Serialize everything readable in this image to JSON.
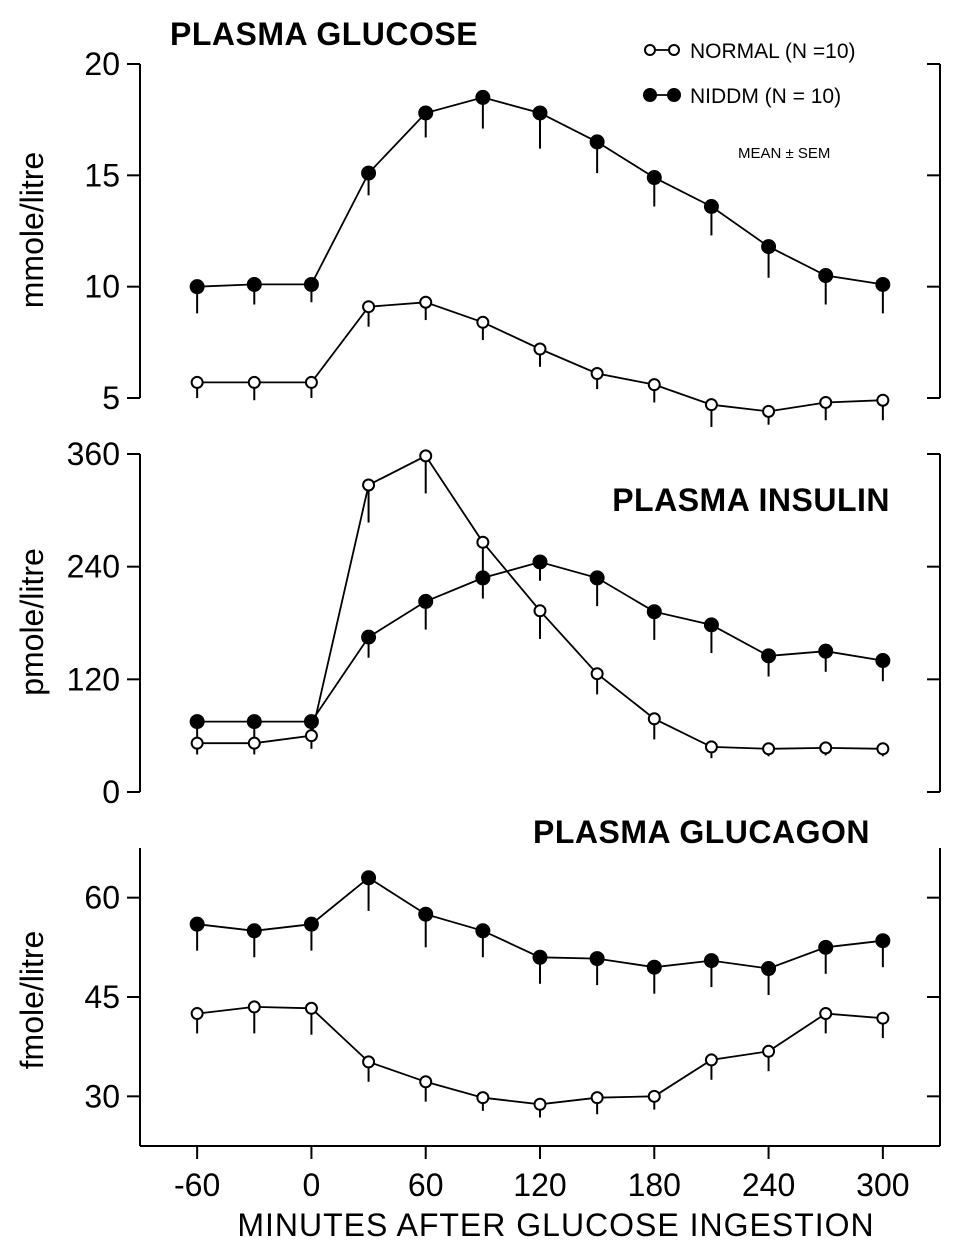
{
  "chart_data": [
    {
      "type": "line",
      "title": "PLASMA GLUCOSE",
      "ylabel": "mmole/litre",
      "xlabel": "",
      "ylim": [
        5,
        20
      ],
      "yticks": [
        "20",
        "15",
        "10",
        "5"
      ],
      "x": [
        -60,
        -30,
        0,
        30,
        60,
        90,
        120,
        150,
        180,
        210,
        240,
        270,
        300
      ],
      "series": [
        {
          "name": "NORMAL (N =10)",
          "marker": "open-circle",
          "values": [
            5.7,
            5.7,
            5.7,
            9.1,
            9.3,
            8.4,
            7.2,
            6.1,
            5.6,
            4.7,
            4.4,
            4.8,
            4.9
          ],
          "sem": [
            0.7,
            0.8,
            0.7,
            0.9,
            0.8,
            0.8,
            0.8,
            0.7,
            0.8,
            1.0,
            0.6,
            0.8,
            0.9
          ]
        },
        {
          "name": "NIDDM (N = 10)",
          "marker": "filled-circle",
          "values": [
            10.0,
            10.1,
            10.1,
            15.1,
            17.8,
            18.5,
            17.8,
            16.5,
            14.9,
            13.6,
            11.8,
            10.5,
            10.1
          ],
          "sem": [
            1.2,
            0.9,
            0.8,
            1.0,
            1.1,
            1.4,
            1.6,
            1.4,
            1.3,
            1.3,
            1.4,
            1.3,
            1.3
          ]
        }
      ]
    },
    {
      "type": "line",
      "title": "PLASMA INSULIN",
      "ylabel": "pmole/litre",
      "xlabel": "",
      "ylim": [
        0,
        360
      ],
      "yticks": [
        "360",
        "240",
        "120",
        "0"
      ],
      "x": [
        -60,
        -30,
        0,
        30,
        60,
        90,
        120,
        150,
        180,
        210,
        240,
        270,
        300
      ],
      "series": [
        {
          "name": "NORMAL (N =10)",
          "marker": "open-circle",
          "values": [
            52,
            52,
            60,
            327,
            358,
            266,
            193,
            126,
            78,
            48,
            46,
            47,
            46
          ],
          "sem": [
            12,
            12,
            14,
            40,
            40,
            40,
            30,
            22,
            22,
            12,
            8,
            8,
            8
          ]
        },
        {
          "name": "NIDDM (N = 10)",
          "marker": "filled-circle",
          "values": [
            75,
            75,
            75,
            165,
            203,
            228,
            245,
            228,
            192,
            178,
            145,
            150,
            140
          ],
          "sem": [
            18,
            18,
            18,
            22,
            30,
            22,
            20,
            30,
            30,
            30,
            22,
            22,
            22
          ]
        }
      ]
    },
    {
      "type": "line",
      "title": "PLASMA GLUCAGON",
      "ylabel": "fmole/litre",
      "xlabel": "MINUTES AFTER GLUCOSE INGESTION",
      "ylim": [
        22.5,
        67.5
      ],
      "yticks": [
        "60",
        "45",
        "30"
      ],
      "xticks": [
        "-60",
        "0",
        "60",
        "120",
        "180",
        "240",
        "300"
      ],
      "x": [
        -60,
        -30,
        0,
        30,
        60,
        90,
        120,
        150,
        180,
        210,
        240,
        270,
        300
      ],
      "series": [
        {
          "name": "NORMAL (N =10)",
          "marker": "open-circle",
          "values": [
            42.5,
            43.5,
            43.3,
            35.2,
            32.2,
            29.8,
            28.8,
            29.8,
            30.0,
            35.5,
            36.8,
            42.5,
            41.8
          ],
          "sem": [
            3.0,
            4.0,
            4.0,
            3.0,
            3.0,
            2.0,
            2.0,
            2.5,
            2.0,
            3.0,
            3.0,
            3.0,
            3.0
          ]
        },
        {
          "name": "NIDDM (N = 10)",
          "marker": "filled-circle",
          "values": [
            56.0,
            55.0,
            56.0,
            63.0,
            57.5,
            55.0,
            51.0,
            50.8,
            49.5,
            50.5,
            49.3,
            52.5,
            53.5
          ],
          "sem": [
            4.0,
            4.0,
            4.0,
            5.0,
            5.0,
            4.0,
            4.0,
            4.0,
            4.0,
            4.0,
            4.0,
            4.0,
            4.0
          ]
        }
      ]
    }
  ],
  "legend": {
    "entries": [
      {
        "label": "NORMAL (N =10)",
        "marker": "open-circle"
      },
      {
        "label": "NIDDM (N = 10)",
        "marker": "filled-circle"
      }
    ],
    "note": "MEAN ± SEM",
    "placement": "top-right"
  },
  "colors": {
    "ink": "#000000",
    "background": "#ffffff"
  }
}
